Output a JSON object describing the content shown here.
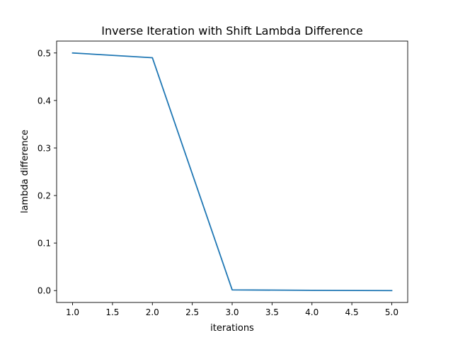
{
  "chart_data": {
    "type": "line",
    "title": "Inverse Iteration with Shift Lambda Difference",
    "xlabel": "iterations",
    "ylabel": "lambda difference",
    "x": [
      1,
      2,
      3,
      4,
      5
    ],
    "series": [
      {
        "values": [
          0.5,
          0.49,
          0.0015,
          0.0005,
          0.0
        ]
      }
    ],
    "xlim": [
      0.8,
      5.2
    ],
    "ylim": [
      -0.025,
      0.525
    ],
    "xticks": [
      1.0,
      1.5,
      2.0,
      2.5,
      3.0,
      3.5,
      4.0,
      4.5,
      5.0
    ],
    "xtick_labels": [
      "1.0",
      "1.5",
      "2.0",
      "2.5",
      "3.0",
      "3.5",
      "4.0",
      "4.5",
      "5.0"
    ],
    "yticks": [
      0.0,
      0.1,
      0.2,
      0.3,
      0.4,
      0.5
    ],
    "ytick_labels": [
      "0.0",
      "0.1",
      "0.2",
      "0.3",
      "0.4",
      "0.5"
    ],
    "grid": false,
    "line_color": "#1f77b4"
  }
}
